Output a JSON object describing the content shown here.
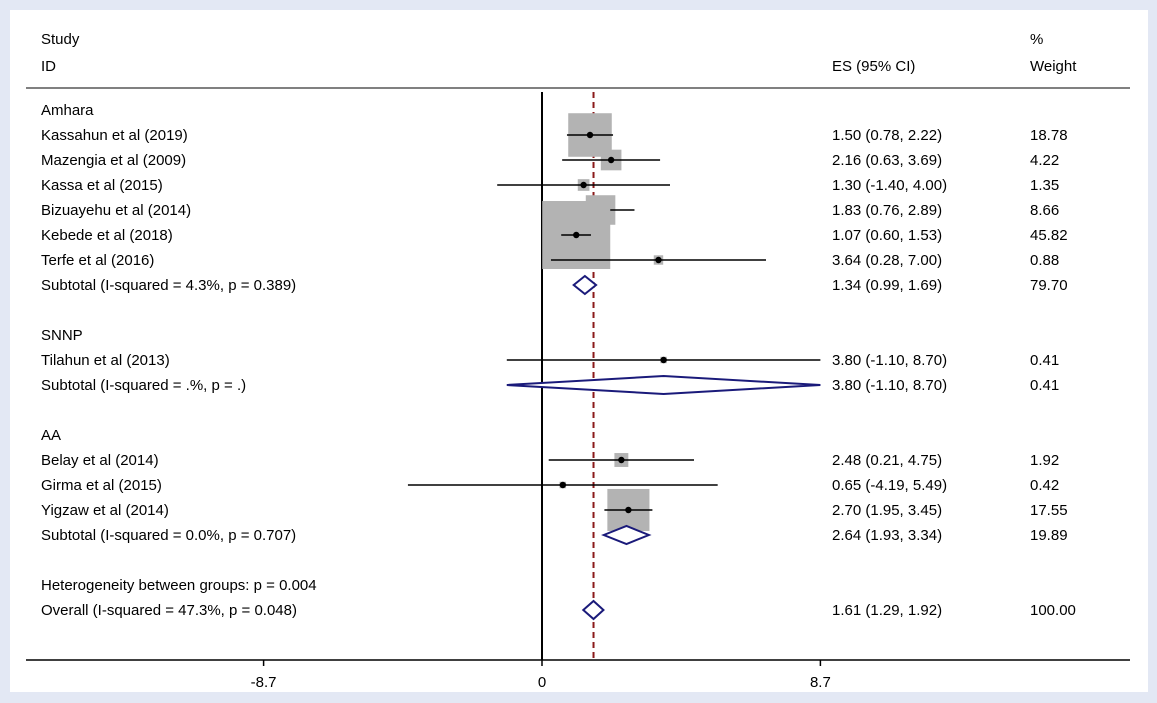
{
  "header": {
    "study_line1": "Study",
    "study_line2": "ID",
    "es_label": "ES (95% CI)",
    "weight_line1": "%",
    "weight_line2": "Weight"
  },
  "colors": {
    "box": "#b3b3b3",
    "diamond": "#1a1a7a",
    "null_line": "#000000",
    "overall_line": "#8b1a1a",
    "background": "#e3e8f4"
  },
  "chart_data": {
    "type": "forest",
    "xlim": [
      -11.2,
      11.2
    ],
    "xticks": [
      -8.7,
      0,
      8.7
    ],
    "xtick_labels": [
      "-8.7",
      "0",
      "8.7"
    ],
    "null_value": 0,
    "overall_es": 1.61,
    "rows": [
      {
        "kind": "group",
        "label": "Amhara"
      },
      {
        "kind": "study",
        "label": "Kassahun et al (2019)",
        "es": 1.5,
        "lo": 0.78,
        "hi": 2.22,
        "ci_text": "1.50 (0.78, 2.22)",
        "weight": 18.78,
        "weight_text": "18.78"
      },
      {
        "kind": "study",
        "label": "Mazengia et al (2009)",
        "es": 2.16,
        "lo": 0.63,
        "hi": 3.69,
        "ci_text": "2.16 (0.63, 3.69)",
        "weight": 4.22,
        "weight_text": "4.22"
      },
      {
        "kind": "study",
        "label": "Kassa et al (2015)",
        "es": 1.3,
        "lo": -1.4,
        "hi": 4.0,
        "ci_text": "1.30 (-1.40, 4.00)",
        "weight": 1.35,
        "weight_text": "1.35"
      },
      {
        "kind": "study",
        "label": "Bizuayehu et al (2014)",
        "es": 1.83,
        "lo": 0.76,
        "hi": 2.89,
        "ci_text": "1.83 (0.76, 2.89)",
        "weight": 8.66,
        "weight_text": "8.66"
      },
      {
        "kind": "study",
        "label": "Kebede et al (2018)",
        "es": 1.07,
        "lo": 0.6,
        "hi": 1.53,
        "ci_text": "1.07 (0.60, 1.53)",
        "weight": 45.82,
        "weight_text": "45.82"
      },
      {
        "kind": "study",
        "label": "Terfe et al (2016)",
        "es": 3.64,
        "lo": 0.28,
        "hi": 7.0,
        "ci_text": "3.64 (0.28, 7.00)",
        "weight": 0.88,
        "weight_text": "0.88"
      },
      {
        "kind": "subtotal",
        "label": "Subtotal  (I-squared = 4.3%, p = 0.389)",
        "es": 1.34,
        "lo": 0.99,
        "hi": 1.69,
        "ci_text": "1.34 (0.99, 1.69)",
        "weight_text": "79.70"
      },
      {
        "kind": "blank"
      },
      {
        "kind": "group",
        "label": "SNNP"
      },
      {
        "kind": "study",
        "label": "Tilahun et al (2013)",
        "es": 3.8,
        "lo": -1.1,
        "hi": 8.7,
        "ci_text": "3.80 (-1.10, 8.70)",
        "weight": 0.41,
        "weight_text": "0.41"
      },
      {
        "kind": "subtotal",
        "label": "Subtotal  (I-squared = .%, p = .)",
        "es": 3.8,
        "lo": -1.1,
        "hi": 8.7,
        "ci_text": "3.80 (-1.10, 8.70)",
        "weight_text": "0.41"
      },
      {
        "kind": "blank"
      },
      {
        "kind": "group",
        "label": "AA"
      },
      {
        "kind": "study",
        "label": "Belay et al (2014)",
        "es": 2.48,
        "lo": 0.21,
        "hi": 4.75,
        "ci_text": "2.48 (0.21, 4.75)",
        "weight": 1.92,
        "weight_text": "1.92"
      },
      {
        "kind": "study",
        "label": "Girma et al (2015)",
        "es": 0.65,
        "lo": -4.19,
        "hi": 5.49,
        "ci_text": "0.65 (-4.19, 5.49)",
        "weight": 0.42,
        "weight_text": "0.42"
      },
      {
        "kind": "study",
        "label": "Yigzaw et al (2014)",
        "es": 2.7,
        "lo": 1.95,
        "hi": 3.45,
        "ci_text": "2.70 (1.95, 3.45)",
        "weight": 17.55,
        "weight_text": "17.55"
      },
      {
        "kind": "subtotal",
        "label": "Subtotal  (I-squared = 0.0%, p = 0.707)",
        "es": 2.64,
        "lo": 1.93,
        "hi": 3.34,
        "ci_text": "2.64 (1.93, 3.34)",
        "weight_text": "19.89"
      },
      {
        "kind": "blank"
      },
      {
        "kind": "note",
        "label": "Heterogeneity between groups: p = 0.004"
      },
      {
        "kind": "overall",
        "label": "Overall  (I-squared = 47.3%, p = 0.048)",
        "es": 1.61,
        "lo": 1.29,
        "hi": 1.92,
        "ci_text": "1.61 (1.29, 1.92)",
        "weight_text": "100.00"
      }
    ]
  }
}
